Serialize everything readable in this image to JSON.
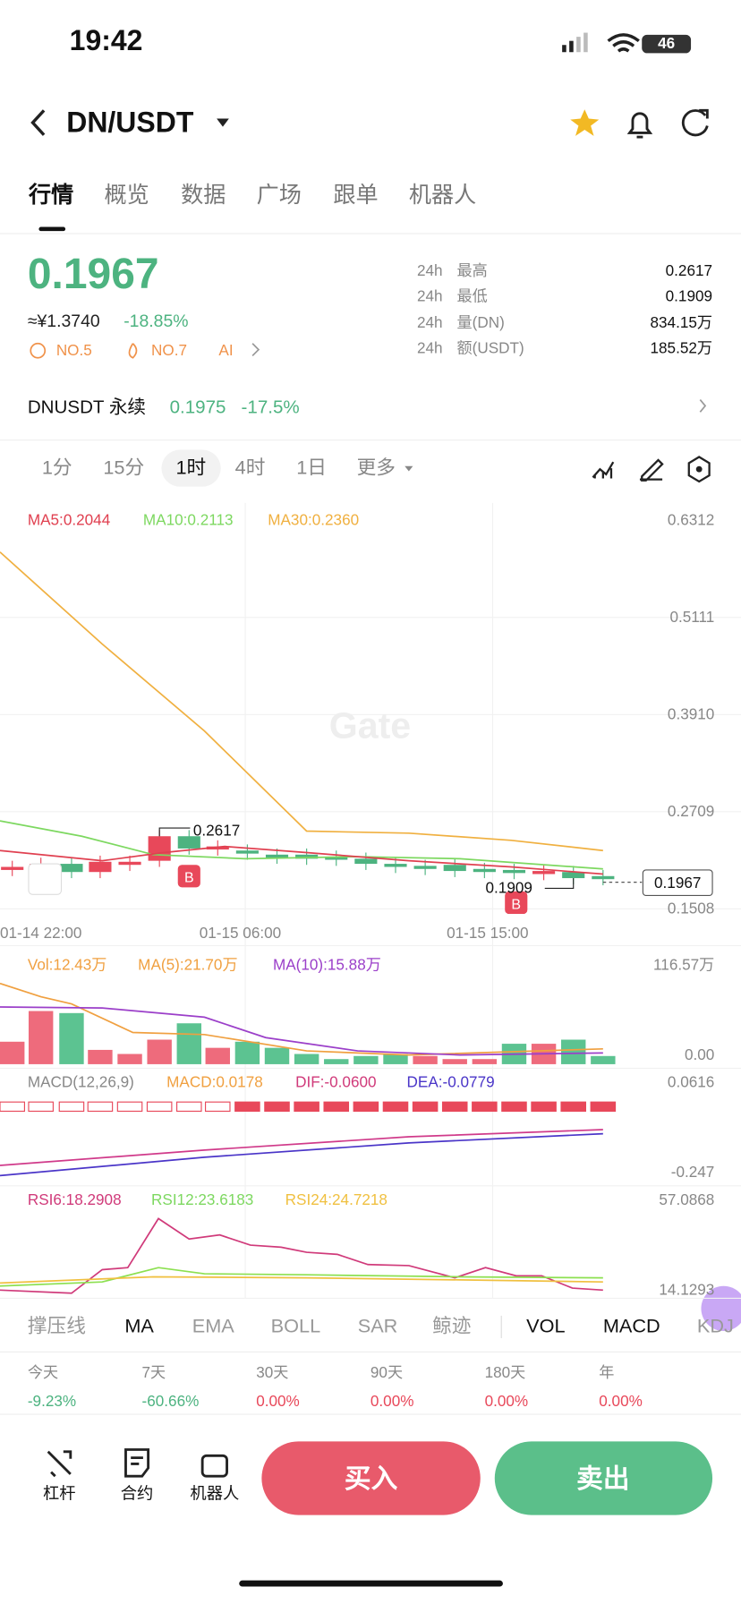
{
  "status": {
    "time": "19:42",
    "battery": "46"
  },
  "header": {
    "pair": "DN/USDT"
  },
  "tabs": [
    "行情",
    "概览",
    "数据",
    "广场",
    "跟单",
    "机器人"
  ],
  "price": {
    "last": "0.1967",
    "cny": "≈¥1.3740",
    "change": "-18.85%",
    "badges": [
      "NO.5",
      "NO.7",
      "AI"
    ]
  },
  "stats": [
    {
      "period": "24h",
      "label": "最高",
      "value": "0.2617"
    },
    {
      "period": "24h",
      "label": "最低",
      "value": "0.1909"
    },
    {
      "period": "24h",
      "label": "量(DN)",
      "value": "834.15万"
    },
    {
      "period": "24h",
      "label": "额(USDT)",
      "value": "185.52万"
    }
  ],
  "perpetual": {
    "name": "DNUSDT 永续",
    "price": "0.1975",
    "change": "-17.5%"
  },
  "intervals": [
    "1分",
    "15分",
    "1时",
    "4时",
    "1日",
    "更多"
  ],
  "kline": {
    "ma_legend": [
      "MA5:0.2044",
      "MA10:0.2113",
      "MA30:0.2360"
    ],
    "price_axis": [
      "0.6312",
      "0.5111",
      "0.3910",
      "0.2709",
      "0.1508"
    ],
    "high_label": "0.2617",
    "low_label": "0.1909",
    "last_price": "0.1967",
    "marker": "B",
    "time_axis": [
      "01-14 22:00",
      "01-15 06:00",
      "01-15 15:00"
    ],
    "watermark": "Gate"
  },
  "volume": {
    "legend": [
      "Vol:12.43万",
      "MA(5):21.70万",
      "MA(10):15.88万"
    ],
    "axis": [
      "116.57万",
      "0.00"
    ]
  },
  "macd": {
    "legend": [
      "MACD(12,26,9)",
      "MACD:0.0178",
      "DIF:-0.0600",
      "DEA:-0.0779"
    ],
    "axis": [
      "0.0616",
      "-0.247"
    ]
  },
  "rsi": {
    "legend": [
      "RSI6:18.2908",
      "RSI12:23.6183",
      "RSI24:24.7218"
    ],
    "axis": [
      "57.0868",
      "14.1293"
    ]
  },
  "indicators": [
    "撑压线",
    "MA",
    "EMA",
    "BOLL",
    "SAR",
    "鲸迹",
    "VOL",
    "MACD",
    "KDJ"
  ],
  "performance": [
    {
      "period": "今天",
      "change": "-9.23%"
    },
    {
      "period": "7天",
      "change": "-60.66%"
    },
    {
      "period": "30天",
      "change": "0.00%"
    },
    {
      "period": "90天",
      "change": "0.00%"
    },
    {
      "period": "180天",
      "change": "0.00%"
    },
    {
      "period": "年",
      "change": "0.00%"
    }
  ],
  "bottom": {
    "tools": [
      "杠杆",
      "合约",
      "机器人"
    ],
    "buy": "买入",
    "sell": "卖出"
  }
}
